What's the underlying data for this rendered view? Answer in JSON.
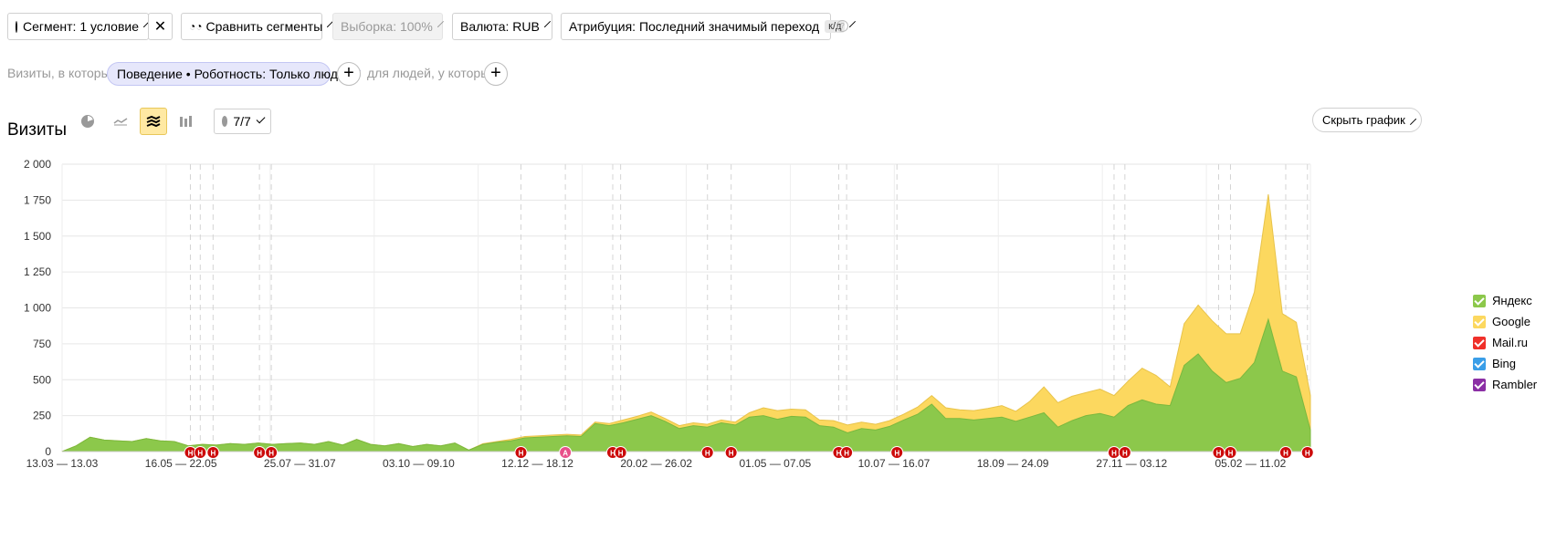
{
  "toolbar": {
    "segment_label": "Сегмент: 1 условие",
    "compare_label": "Сравнить сегменты",
    "sample_label": "Выборка: 100%",
    "currency_label": "Валюта: RUB",
    "attribution_label": "Атрибуция: Последний значимый переход",
    "attribution_badge": "к/д"
  },
  "filters": {
    "visits_prefix": "Визиты, в которых",
    "chip_label": "Поведение • Роботность: Только люди",
    "people_prefix": "для людей, у которых"
  },
  "header": {
    "title": "Визиты",
    "annotations_count": "7/7",
    "hide_chart_label": "Скрыть график"
  },
  "legend": [
    {
      "name": "Яндекс",
      "color": "#8cc84b"
    },
    {
      "name": "Google",
      "color": "#fcd85f"
    },
    {
      "name": "Mail.ru",
      "color": "#f0302a"
    },
    {
      "name": "Bing",
      "color": "#3a9ee8"
    },
    {
      "name": "Rambler",
      "color": "#8b2fa5"
    }
  ],
  "chart_data": {
    "type": "area",
    "stacked": true,
    "ylim": [
      0,
      2000
    ],
    "yticks": [
      "2 000",
      "1 750",
      "1 500",
      "1 250",
      "1 000",
      "750",
      "500",
      "250",
      "0"
    ],
    "xticks": [
      "13.03 — 13.03",
      "16.05 — 22.05",
      "25.07 — 31.07",
      "03.10 — 09.10",
      "12.12 — 18.12",
      "20.02 — 26.02",
      "01.05 — 07.05",
      "10.07 — 16.07",
      "18.09 — 24.09",
      "27.11 — 03.12",
      "05.02 — 11.02"
    ],
    "series": [
      {
        "name": "Яндекс",
        "color": "#8cc84b",
        "values": [
          0,
          40,
          100,
          80,
          75,
          70,
          90,
          75,
          70,
          40,
          50,
          45,
          55,
          50,
          60,
          50,
          55,
          60,
          50,
          70,
          45,
          85,
          50,
          40,
          55,
          35,
          50,
          40,
          60,
          10,
          50,
          65,
          75,
          95,
          100,
          105,
          110,
          105,
          195,
          180,
          200,
          225,
          250,
          210,
          160,
          180,
          170,
          200,
          185,
          240,
          250,
          225,
          245,
          240,
          180,
          170,
          130,
          160,
          150,
          175,
          220,
          260,
          330,
          230,
          230,
          220,
          230,
          240,
          210,
          240,
          270,
          170,
          215,
          250,
          265,
          240,
          320,
          360,
          330,
          320,
          600,
          680,
          560,
          480,
          510,
          620,
          920,
          560,
          520,
          150
        ]
      },
      {
        "name": "Google",
        "color": "#fcd85f",
        "values": [
          0,
          0,
          0,
          0,
          0,
          0,
          0,
          0,
          0,
          0,
          0,
          0,
          0,
          0,
          0,
          0,
          0,
          0,
          0,
          0,
          0,
          0,
          0,
          0,
          0,
          0,
          0,
          0,
          0,
          0,
          5,
          5,
          10,
          10,
          10,
          10,
          10,
          10,
          10,
          15,
          20,
          20,
          25,
          20,
          20,
          20,
          20,
          20,
          20,
          30,
          55,
          60,
          50,
          50,
          40,
          45,
          55,
          45,
          40,
          40,
          40,
          50,
          60,
          75,
          60,
          65,
          70,
          80,
          70,
          110,
          180,
          170,
          170,
          160,
          170,
          150,
          170,
          220,
          200,
          130,
          290,
          340,
          350,
          340,
          310,
          490,
          870,
          400,
          380,
          240
        ]
      },
      {
        "name": "Mail.ru",
        "color": "#f0302a",
        "values": []
      },
      {
        "name": "Bing",
        "color": "#3a9ee8",
        "values": []
      },
      {
        "name": "Rambler",
        "color": "#8b2fa5",
        "values": []
      }
    ],
    "grid": true,
    "legend_position": "right",
    "annotations": [
      {
        "idx": 13.0,
        "label": "Н"
      },
      {
        "idx": 14.0,
        "label": "Н"
      },
      {
        "idx": 15.3,
        "label": "Н"
      },
      {
        "idx": 20.0,
        "label": "Н"
      },
      {
        "idx": 21.2,
        "label": "Н"
      },
      {
        "idx": 46.5,
        "label": "Н"
      },
      {
        "idx": 51.0,
        "label": "А"
      },
      {
        "idx": 55.8,
        "label": "Н"
      },
      {
        "idx": 56.6,
        "label": "Н"
      },
      {
        "idx": 65.4,
        "label": "Н"
      },
      {
        "idx": 67.8,
        "label": "Н"
      },
      {
        "idx": 78.7,
        "label": "Н"
      },
      {
        "idx": 79.5,
        "label": "Н"
      },
      {
        "idx": 84.6,
        "label": "Н"
      },
      {
        "idx": 106.6,
        "label": "Н"
      },
      {
        "idx": 107.7,
        "label": "Н"
      },
      {
        "idx": 117.2,
        "label": "Н"
      },
      {
        "idx": 118.4,
        "label": "Н"
      },
      {
        "idx": 124.0,
        "label": "Н"
      },
      {
        "idx": 126.2,
        "label": "Н"
      }
    ]
  }
}
